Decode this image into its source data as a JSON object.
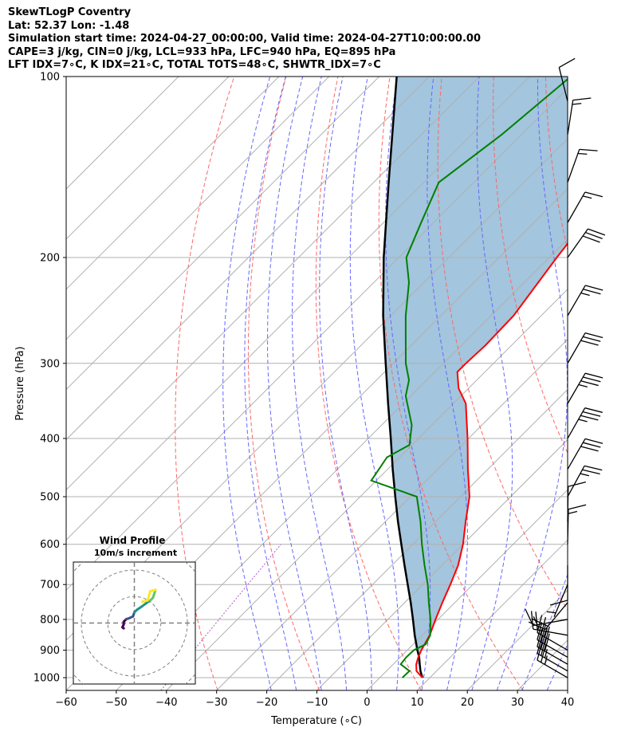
{
  "title_lines": [
    "SkewTLogP Coventry",
    "Lat: 52.37   Lon: -1.48",
    "Simulation start time: 2024-04-27_00:00:00, Valid time: 2024-04-27T10:00:00.00",
    "CAPE=3 j/kg, CIN=0 j/kg, LCL=933 hPa, LFC=940 hPa, EQ=895 hPa",
    "LFT IDX=7∘C, K IDX=21∘C, TOTAL TOTS=48∘C, SHWTR_IDX=7∘C"
  ],
  "colors": {
    "temperature": "#ff0000",
    "dewpoint": "#008000",
    "parcel": "#000000",
    "cape_fill": "#a3c5dd",
    "dry_adiabat": "#ff6666",
    "moist_adiabat": "#6666ff",
    "mixing_ratio": "#b05ccf",
    "isotherm": "#b0b0b0"
  },
  "chart_data": {
    "type": "skewt",
    "xlabel": "Temperature (∘C)",
    "ylabel": "Pressure (hPa)",
    "xlim": [
      -60,
      40
    ],
    "ylim": [
      1050,
      100
    ],
    "x_ticks": [
      -60,
      -50,
      -40,
      -30,
      -20,
      -10,
      0,
      10,
      20,
      30,
      40
    ],
    "x_tick_labels": [
      "−60",
      "−50",
      "−40",
      "−30",
      "−20",
      "−10",
      "0",
      "10",
      "20",
      "30",
      "40"
    ],
    "y_ticks": [
      1000,
      900,
      800,
      700,
      600,
      500,
      400,
      300,
      200,
      100
    ],
    "y_tick_labels": [
      "1000",
      "900",
      "800",
      "700",
      "600",
      "500",
      "400",
      "300",
      "200",
      "100"
    ],
    "grid": true,
    "temperature_profile": [
      [
        1000,
        8.5
      ],
      [
        975,
        6
      ],
      [
        950,
        4.6
      ],
      [
        925,
        3.6
      ],
      [
        900,
        2.8
      ],
      [
        850,
        1.5
      ],
      [
        800,
        -0.5
      ],
      [
        750,
        -2.5
      ],
      [
        700,
        -4.5
      ],
      [
        650,
        -6.8
      ],
      [
        600,
        -10
      ],
      [
        550,
        -14
      ],
      [
        500,
        -18.2
      ],
      [
        450,
        -24
      ],
      [
        400,
        -30.2
      ],
      [
        350,
        -37.5
      ],
      [
        330,
        -42
      ],
      [
        310,
        -45.5
      ],
      [
        300,
        -45.5
      ],
      [
        280,
        -45.2
      ],
      [
        250,
        -45.5
      ],
      [
        200,
        -48.5
      ],
      [
        175,
        -50
      ],
      [
        150,
        -51.8
      ],
      [
        125,
        -52.5
      ],
      [
        110,
        -52.8
      ],
      [
        100,
        -53
      ]
    ],
    "dewpoint_profile": [
      [
        1000,
        4.5
      ],
      [
        975,
        4.6
      ],
      [
        950,
        1.5
      ],
      [
        925,
        1.2
      ],
      [
        900,
        1.3
      ],
      [
        880,
        2.5
      ],
      [
        850,
        1.6
      ],
      [
        800,
        -1.5
      ],
      [
        750,
        -5.2
      ],
      [
        700,
        -9
      ],
      [
        650,
        -13.5
      ],
      [
        600,
        -18.2
      ],
      [
        550,
        -23
      ],
      [
        500,
        -28.7
      ],
      [
        470,
        -41
      ],
      [
        430,
        -42.5
      ],
      [
        410,
        -40.5
      ],
      [
        380,
        -44
      ],
      [
        340,
        -51
      ],
      [
        320,
        -53.5
      ],
      [
        300,
        -57.5
      ],
      [
        270,
        -63
      ],
      [
        250,
        -67
      ],
      [
        220,
        -73
      ],
      [
        200,
        -78.5
      ],
      [
        175,
        -82.5
      ],
      [
        150,
        -87
      ],
      [
        125,
        -84
      ],
      [
        100,
        -81.8
      ]
    ],
    "parcel_profile": [
      [
        1000,
        8.5
      ],
      [
        975,
        6.8
      ],
      [
        950,
        5.3
      ],
      [
        925,
        3.8
      ],
      [
        900,
        2
      ],
      [
        850,
        -1.5
      ],
      [
        800,
        -5
      ],
      [
        750,
        -8.8
      ],
      [
        700,
        -13
      ],
      [
        650,
        -17.5
      ],
      [
        600,
        -22.3
      ],
      [
        550,
        -27.5
      ],
      [
        500,
        -33
      ],
      [
        450,
        -39
      ],
      [
        400,
        -45.5
      ],
      [
        350,
        -53
      ],
      [
        300,
        -61.5
      ],
      [
        250,
        -71.5
      ],
      [
        200,
        -83
      ],
      [
        150,
        -97
      ],
      [
        100,
        -116.5
      ]
    ],
    "wind_barbs": [
      {
        "p": 1000,
        "u": -10.4,
        "v": 6
      },
      {
        "p": 975,
        "u": -12.1,
        "v": 7
      },
      {
        "p": 950,
        "u": -13.9,
        "v": 8
      },
      {
        "p": 925,
        "u": -13,
        "v": 7.5
      },
      {
        "p": 900,
        "u": -10.4,
        "v": 6
      },
      {
        "p": 850,
        "u": -9,
        "v": 1.6
      },
      {
        "p": 800,
        "u": -8.5,
        "v": -1.5
      },
      {
        "p": 750,
        "u": -6.4,
        "v": -7.7
      },
      {
        "p": 700,
        "u": -1.3,
        "v": -3.1
      },
      {
        "p": 650,
        "u": 0,
        "v": -4
      },
      {
        "p": 600,
        "u": 0.2,
        "v": 9
      },
      {
        "p": 550,
        "u": 0.1,
        "v": 6
      },
      {
        "p": 500,
        "u": 6,
        "v": 11
      },
      {
        "p": 450,
        "u": 7.5,
        "v": 13
      },
      {
        "p": 400,
        "u": 8.5,
        "v": 15
      },
      {
        "p": 350,
        "u": 9,
        "v": 15.5
      },
      {
        "p": 300,
        "u": 7.5,
        "v": 13
      },
      {
        "p": 250,
        "u": 7,
        "v": 12
      },
      {
        "p": 200,
        "u": 8.5,
        "v": 12
      },
      {
        "p": 175,
        "u": 4,
        "v": 7
      },
      {
        "p": 150,
        "u": 2.5,
        "v": 7
      },
      {
        "p": 125,
        "u": 1,
        "v": 6.5
      },
      {
        "p": 110,
        "u": -1.5,
        "v": 6
      }
    ],
    "hodograph": {
      "title": "Wind Profile",
      "subtitle": "10m/s increment",
      "ring_step_ms": 10,
      "max_radius_ms": 23,
      "points": [
        [
          -4,
          -2
        ],
        [
          -4.5,
          -1.6
        ],
        [
          -4,
          -0.5
        ],
        [
          -4,
          0.5
        ],
        [
          -3,
          1.5
        ],
        [
          -2,
          1.8
        ],
        [
          -0.5,
          2.5
        ],
        [
          0,
          4
        ],
        [
          1,
          5
        ],
        [
          2.5,
          6
        ],
        [
          4.5,
          7.5
        ],
        [
          6,
          8.5
        ],
        [
          7,
          9.5
        ],
        [
          7.5,
          11
        ],
        [
          8,
          12.5
        ],
        [
          6,
          12
        ],
        [
          5,
          8.5
        ],
        [
          3,
          8
        ]
      ]
    }
  }
}
